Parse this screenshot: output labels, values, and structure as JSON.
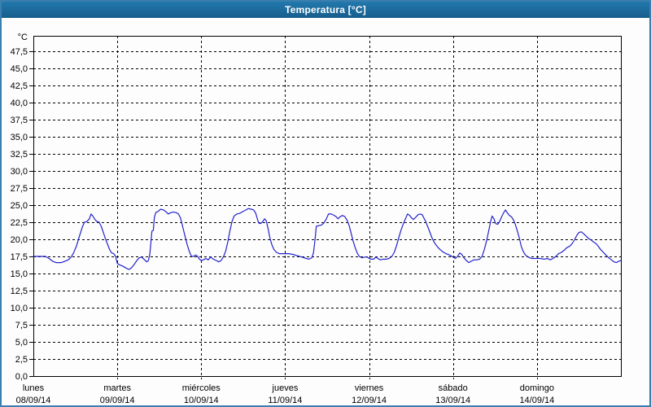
{
  "window": {
    "title": "Temperatura [°C]"
  },
  "colors": {
    "title_bar": "#1d6b9d",
    "window_border": "#3a7fae",
    "line": "#2222cc",
    "grid": "#000000",
    "text": "#000000",
    "background": "#ffffff"
  },
  "chart_data": {
    "type": "line",
    "title": "Temperatura [°C]",
    "grid": "dashed",
    "legend_position": "none",
    "y_axis": {
      "unit_label": "°C",
      "min": 0,
      "max": 47.5,
      "step": 2.5,
      "tick_labels": [
        "0,0",
        "2,5",
        "5,0",
        "7,5",
        "10,0",
        "12,5",
        "15,0",
        "17,5",
        "20,0",
        "22,5",
        "25,0",
        "27,5",
        "30,0",
        "32,5",
        "35,0",
        "37,5",
        "40,0",
        "42,5",
        "45,0",
        "47,5"
      ]
    },
    "x_axis": {
      "unit": "hours",
      "range_hours": [
        0,
        168
      ],
      "days": [
        {
          "name": "lunes",
          "date": "08/09/14"
        },
        {
          "name": "martes",
          "date": "09/09/14"
        },
        {
          "name": "miércoles",
          "date": "10/09/14"
        },
        {
          "name": "jueves",
          "date": "11/09/14"
        },
        {
          "name": "viernes",
          "date": "12/09/14"
        },
        {
          "name": "sábado",
          "date": "13/09/14"
        },
        {
          "name": "domingo",
          "date": "14/09/14"
        }
      ]
    },
    "series": [
      {
        "name": "Temperatura",
        "color": "#2222cc",
        "points": [
          [
            0,
            17.5
          ],
          [
            1.5,
            17.5
          ],
          [
            3.5,
            17.5
          ],
          [
            4.5,
            17.2
          ],
          [
            5.5,
            16.8
          ],
          [
            6.5,
            16.6
          ],
          [
            8,
            16.6
          ],
          [
            9,
            16.8
          ],
          [
            10,
            17.0
          ],
          [
            10.8,
            17.4
          ],
          [
            11.5,
            18.0
          ],
          [
            12.3,
            19.0
          ],
          [
            13.2,
            20.5
          ],
          [
            14,
            21.8
          ],
          [
            14.6,
            22.5
          ],
          [
            15.3,
            22.6
          ],
          [
            16,
            23.0
          ],
          [
            16.5,
            23.7
          ],
          [
            17,
            23.4
          ],
          [
            17.6,
            22.9
          ],
          [
            18.2,
            22.6
          ],
          [
            18.8,
            22.5
          ],
          [
            19.4,
            21.9
          ],
          [
            20,
            21.0
          ],
          [
            20.6,
            20.1
          ],
          [
            21.2,
            19.3
          ],
          [
            21.8,
            18.5
          ],
          [
            22.4,
            18.0
          ],
          [
            23,
            17.9
          ],
          [
            23.5,
            17.5
          ],
          [
            24,
            16.5
          ],
          [
            24.5,
            16.3
          ],
          [
            25.5,
            16.1
          ],
          [
            26.5,
            15.8
          ],
          [
            27.3,
            15.6
          ],
          [
            28,
            15.8
          ],
          [
            28.8,
            16.3
          ],
          [
            29.6,
            16.9
          ],
          [
            30.3,
            17.3
          ],
          [
            31,
            17.4
          ],
          [
            31.8,
            17.0
          ],
          [
            32.4,
            16.7
          ],
          [
            32.9,
            16.9
          ],
          [
            33.3,
            17.8
          ],
          [
            33.6,
            19.5
          ],
          [
            33.9,
            21.2
          ],
          [
            34.3,
            21.3
          ],
          [
            34.6,
            23.2
          ],
          [
            35,
            23.9
          ],
          [
            35.7,
            24.1
          ],
          [
            36.4,
            24.4
          ],
          [
            37.2,
            24.3
          ],
          [
            38,
            24.0
          ],
          [
            38.6,
            23.7
          ],
          [
            39.3,
            23.9
          ],
          [
            40,
            24.0
          ],
          [
            40.8,
            23.9
          ],
          [
            41.5,
            23.7
          ],
          [
            42,
            23.2
          ],
          [
            42.4,
            22.5
          ],
          [
            43,
            21.2
          ],
          [
            43.5,
            20.2
          ],
          [
            44,
            19.2
          ],
          [
            44.6,
            18.2
          ],
          [
            45.2,
            17.5
          ],
          [
            45.8,
            17.5
          ],
          [
            46.4,
            17.7
          ],
          [
            47,
            17.5
          ],
          [
            47.5,
            17.1
          ],
          [
            48,
            16.9
          ],
          [
            48.6,
            17.0
          ],
          [
            49.3,
            17.2
          ],
          [
            50,
            17.0
          ],
          [
            50.7,
            17.4
          ],
          [
            51.5,
            17.1
          ],
          [
            52.3,
            16.9
          ],
          [
            53,
            16.7
          ],
          [
            53.7,
            16.9
          ],
          [
            54.4,
            17.5
          ],
          [
            55,
            18.3
          ],
          [
            55.6,
            19.6
          ],
          [
            56.2,
            21.2
          ],
          [
            56.8,
            22.6
          ],
          [
            57.4,
            23.4
          ],
          [
            58.2,
            23.7
          ],
          [
            59,
            23.8
          ],
          [
            60,
            24.1
          ],
          [
            60.8,
            24.3
          ],
          [
            61.5,
            24.5
          ],
          [
            62.3,
            24.4
          ],
          [
            63,
            24.3
          ],
          [
            63.6,
            23.8
          ],
          [
            64,
            23.1
          ],
          [
            64.4,
            22.4
          ],
          [
            65,
            22.3
          ],
          [
            65.6,
            22.6
          ],
          [
            66.1,
            23.0
          ],
          [
            66.6,
            22.7
          ],
          [
            67.1,
            21.6
          ],
          [
            67.6,
            20.3
          ],
          [
            68.2,
            19.2
          ],
          [
            68.8,
            18.5
          ],
          [
            69.5,
            18.1
          ],
          [
            70.3,
            17.9
          ],
          [
            71.2,
            17.9
          ],
          [
            72,
            17.9
          ],
          [
            73,
            17.9
          ],
          [
            74.2,
            17.8
          ],
          [
            75.5,
            17.6
          ],
          [
            76.8,
            17.4
          ],
          [
            78,
            17.2
          ],
          [
            78.8,
            17.1
          ],
          [
            79.6,
            17.3
          ],
          [
            80.1,
            18.0
          ],
          [
            80.5,
            19.8
          ],
          [
            80.9,
            21.9
          ],
          [
            81.6,
            22.0
          ],
          [
            82.4,
            22.1
          ],
          [
            83.1,
            22.4
          ],
          [
            83.8,
            23.0
          ],
          [
            84.4,
            23.7
          ],
          [
            85.2,
            23.7
          ],
          [
            86,
            23.5
          ],
          [
            86.6,
            23.3
          ],
          [
            87.1,
            23.0
          ],
          [
            87.7,
            23.3
          ],
          [
            88.4,
            23.5
          ],
          [
            89.1,
            23.3
          ],
          [
            89.7,
            22.8
          ],
          [
            90.3,
            22.0
          ],
          [
            90.9,
            20.8
          ],
          [
            91.4,
            19.8
          ],
          [
            92,
            18.8
          ],
          [
            92.6,
            18.0
          ],
          [
            93.2,
            17.5
          ],
          [
            94,
            17.3
          ],
          [
            94.8,
            17.4
          ],
          [
            95.5,
            17.4
          ],
          [
            96,
            17.2
          ],
          [
            96.6,
            17.1
          ],
          [
            97.3,
            17.1
          ],
          [
            97.9,
            17.4
          ],
          [
            98.5,
            17.2
          ],
          [
            99.2,
            17.0
          ],
          [
            100,
            17.1
          ],
          [
            100.9,
            17.1
          ],
          [
            101.7,
            17.2
          ],
          [
            102.5,
            17.5
          ],
          [
            103.2,
            18.1
          ],
          [
            103.8,
            19.0
          ],
          [
            104.4,
            20.1
          ],
          [
            105.1,
            21.3
          ],
          [
            105.8,
            22.3
          ],
          [
            106.4,
            23.0
          ],
          [
            107,
            23.7
          ],
          [
            107.6,
            23.5
          ],
          [
            108.2,
            23.1
          ],
          [
            108.7,
            22.9
          ],
          [
            109.3,
            23.2
          ],
          [
            110,
            23.6
          ],
          [
            110.6,
            23.7
          ],
          [
            111.2,
            23.6
          ],
          [
            111.7,
            23.1
          ],
          [
            112.2,
            22.6
          ],
          [
            112.8,
            21.8
          ],
          [
            113.4,
            21.0
          ],
          [
            114,
            20.2
          ],
          [
            114.7,
            19.5
          ],
          [
            115.4,
            19.0
          ],
          [
            116.1,
            18.6
          ],
          [
            117,
            18.2
          ],
          [
            118,
            17.9
          ],
          [
            119,
            17.7
          ],
          [
            120,
            17.4
          ],
          [
            120.7,
            17.2
          ],
          [
            121.3,
            17.5
          ],
          [
            121.9,
            18.0
          ],
          [
            122.5,
            17.8
          ],
          [
            123.1,
            17.3
          ],
          [
            123.8,
            16.9
          ],
          [
            124.5,
            16.6
          ],
          [
            125.2,
            16.8
          ],
          [
            126,
            17.0
          ],
          [
            126.8,
            17.0
          ],
          [
            127.6,
            17.1
          ],
          [
            128.3,
            17.5
          ],
          [
            129,
            18.6
          ],
          [
            129.6,
            19.8
          ],
          [
            130.2,
            21.2
          ],
          [
            130.8,
            22.7
          ],
          [
            131.2,
            23.4
          ],
          [
            131.7,
            23.0
          ],
          [
            132.2,
            22.3
          ],
          [
            132.8,
            22.2
          ],
          [
            133.4,
            22.7
          ],
          [
            134,
            23.4
          ],
          [
            134.6,
            24.0
          ],
          [
            135,
            24.3
          ],
          [
            135.5,
            23.9
          ],
          [
            136.1,
            23.5
          ],
          [
            136.7,
            23.3
          ],
          [
            137.3,
            22.8
          ],
          [
            137.8,
            22.2
          ],
          [
            138.4,
            21.2
          ],
          [
            139,
            20.1
          ],
          [
            139.5,
            19.0
          ],
          [
            140,
            18.3
          ],
          [
            140.7,
            17.7
          ],
          [
            141.5,
            17.4
          ],
          [
            142.4,
            17.2
          ],
          [
            143.2,
            17.2
          ],
          [
            144,
            17.2
          ],
          [
            145,
            17.2
          ],
          [
            146,
            17.1
          ],
          [
            147,
            17.2
          ],
          [
            147.8,
            17.0
          ],
          [
            148.6,
            17.2
          ],
          [
            149.4,
            17.5
          ],
          [
            150.2,
            17.9
          ],
          [
            151,
            18.1
          ],
          [
            151.8,
            18.4
          ],
          [
            152.6,
            18.8
          ],
          [
            153.4,
            19.0
          ],
          [
            154.1,
            19.4
          ],
          [
            154.8,
            20.0
          ],
          [
            155.4,
            20.6
          ],
          [
            156,
            21.0
          ],
          [
            156.7,
            21.1
          ],
          [
            157.4,
            20.8
          ],
          [
            158,
            20.5
          ],
          [
            158.8,
            20.1
          ],
          [
            159.5,
            19.9
          ],
          [
            160.2,
            19.6
          ],
          [
            160.8,
            19.4
          ],
          [
            161.5,
            19.0
          ],
          [
            162.2,
            18.5
          ],
          [
            163,
            18.1
          ],
          [
            163.7,
            17.7
          ],
          [
            164.5,
            17.3
          ],
          [
            165.3,
            17.0
          ],
          [
            166,
            16.7
          ],
          [
            166.7,
            16.6
          ],
          [
            167.4,
            16.8
          ],
          [
            168,
            16.9
          ]
        ]
      }
    ]
  }
}
